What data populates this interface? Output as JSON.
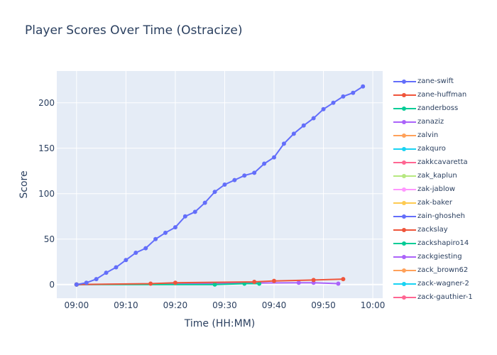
{
  "chart_data": {
    "type": "line",
    "title": "Player Scores Over Time (Ostracize)",
    "xlabel": "Time (HH:MM)",
    "ylabel": "Score",
    "x_ticks": [
      "09:00",
      "09:10",
      "09:20",
      "09:30",
      "09:40",
      "09:50",
      "10:00"
    ],
    "y_ticks": [
      0,
      50,
      100,
      150,
      200
    ],
    "xlim": [
      "08:56",
      "10:02"
    ],
    "ylim": [
      -15,
      235
    ],
    "grid": true,
    "legend_position": "right",
    "series": [
      {
        "name": "zane-swift",
        "color": "#636efa",
        "points": [
          [
            "09:00",
            0
          ],
          [
            "09:02",
            2
          ],
          [
            "09:04",
            6
          ],
          [
            "09:06",
            13
          ],
          [
            "09:08",
            19
          ],
          [
            "09:10",
            27
          ],
          [
            "09:12",
            35
          ],
          [
            "09:14",
            40
          ],
          [
            "09:16",
            50
          ],
          [
            "09:18",
            57
          ],
          [
            "09:20",
            63
          ],
          [
            "09:22",
            75
          ],
          [
            "09:24",
            80
          ],
          [
            "09:26",
            90
          ],
          [
            "09:28",
            102
          ],
          [
            "09:30",
            110
          ],
          [
            "09:32",
            115
          ],
          [
            "09:34",
            120
          ],
          [
            "09:36",
            123
          ],
          [
            "09:38",
            133
          ],
          [
            "09:40",
            140
          ],
          [
            "09:42",
            155
          ],
          [
            "09:44",
            166
          ],
          [
            "09:46",
            175
          ],
          [
            "09:48",
            183
          ],
          [
            "09:50",
            193
          ],
          [
            "09:52",
            200
          ],
          [
            "09:54",
            207
          ],
          [
            "09:56",
            211
          ],
          [
            "09:58",
            218
          ]
        ]
      },
      {
        "name": "zane-huffman",
        "color": "#ef553b",
        "points": [
          [
            "09:00",
            0
          ],
          [
            "09:15",
            1
          ],
          [
            "09:20",
            2
          ],
          [
            "09:36",
            3
          ],
          [
            "09:40",
            4
          ],
          [
            "09:48",
            5
          ],
          [
            "09:54",
            6
          ]
        ]
      },
      {
        "name": "zanderboss",
        "color": "#00cc96",
        "points": [
          [
            "09:00",
            0
          ],
          [
            "09:28",
            0
          ],
          [
            "09:34",
            1
          ],
          [
            "09:37",
            1
          ]
        ]
      },
      {
        "name": "zanaziz",
        "color": "#ab63fa",
        "points": [
          [
            "09:00",
            0
          ],
          [
            "09:45",
            2
          ],
          [
            "09:48",
            2
          ],
          [
            "09:53",
            1
          ]
        ]
      },
      {
        "name": "zalvin",
        "color": "#ffa15a",
        "points": [
          [
            "09:00",
            0
          ]
        ]
      },
      {
        "name": "zakquro",
        "color": "#19d3f3",
        "points": [
          [
            "09:00",
            0
          ]
        ]
      },
      {
        "name": "zakkcavaretta",
        "color": "#ff6692",
        "points": [
          [
            "09:00",
            0
          ]
        ]
      },
      {
        "name": "zak_kaplun",
        "color": "#b6e880",
        "points": [
          [
            "09:00",
            0
          ]
        ]
      },
      {
        "name": "zak-jablow",
        "color": "#ff97ff",
        "points": [
          [
            "09:00",
            0
          ]
        ]
      },
      {
        "name": "zak-baker",
        "color": "#fecb52",
        "points": [
          [
            "09:00",
            0
          ]
        ]
      },
      {
        "name": "zain-ghosheh",
        "color": "#636efa",
        "points": [
          [
            "09:00",
            0
          ]
        ]
      },
      {
        "name": "zackslay",
        "color": "#ef553b",
        "points": [
          [
            "09:00",
            0
          ]
        ]
      },
      {
        "name": "zackshapiro14",
        "color": "#00cc96",
        "points": [
          [
            "09:00",
            0
          ]
        ]
      },
      {
        "name": "zackgiesting",
        "color": "#ab63fa",
        "points": [
          [
            "09:00",
            0
          ]
        ]
      },
      {
        "name": "zack_brown62",
        "color": "#ffa15a",
        "points": [
          [
            "09:00",
            0
          ]
        ]
      },
      {
        "name": "zack-wagner-2",
        "color": "#19d3f3",
        "points": [
          [
            "09:00",
            0
          ]
        ]
      },
      {
        "name": "zack-gauthier-1",
        "color": "#ff6692",
        "points": [
          [
            "09:00",
            0
          ]
        ]
      }
    ]
  }
}
